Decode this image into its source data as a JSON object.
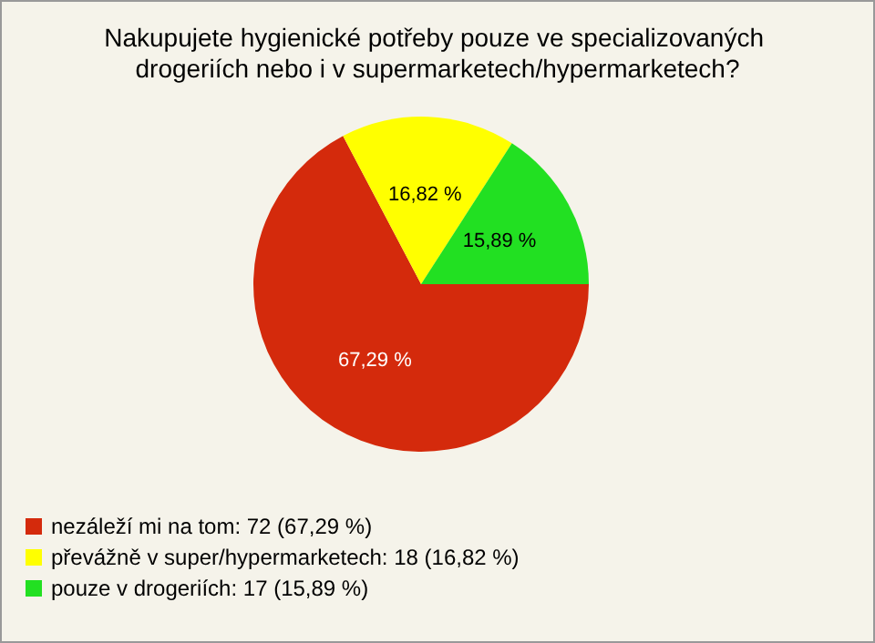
{
  "chart_data": {
    "type": "pie",
    "title": "Nakupujete hygienické potřeby pouze ve specializovaných drogeriích nebo i v supermarketech/hypermarketech?",
    "categories": [
      "nezáleží mi na tom: 72 (67,29 %)",
      "převážně v super/hypermarketech: 18 (16,82 %)",
      "pouze v drogeriích: 17 (15,89 %)"
    ],
    "values": [
      67.29,
      16.82,
      15.89
    ],
    "colors": [
      "#d42a0c",
      "#ffff00",
      "#22e022"
    ],
    "value_labels": [
      "67,29 %",
      "16,82 %",
      "15,89 %"
    ],
    "legend": "bottom left"
  }
}
